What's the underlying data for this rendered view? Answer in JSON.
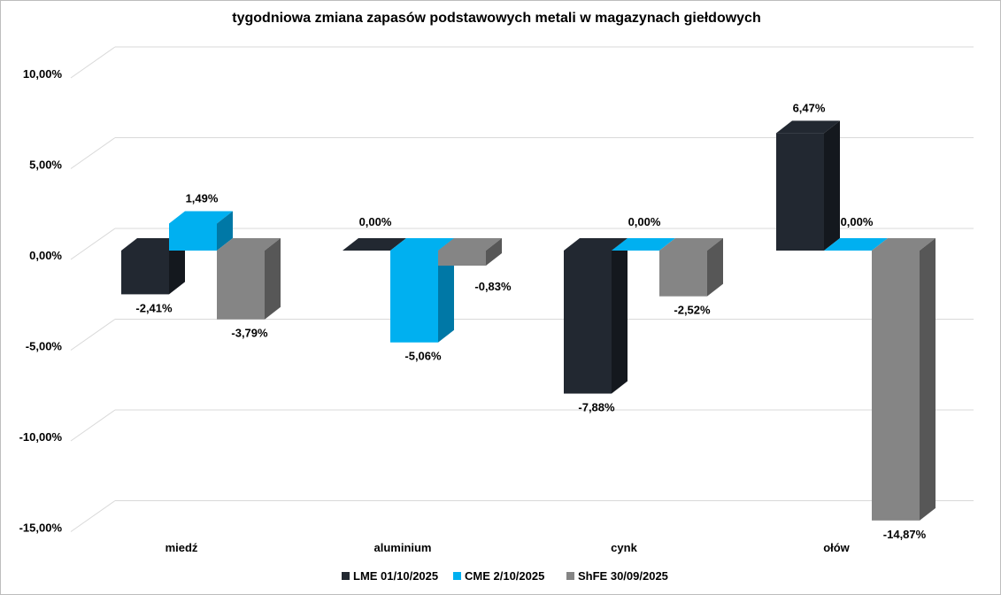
{
  "chart_data": {
    "type": "bar",
    "title": "tygodniowa zmiana zapasów podstawowych metali w magazynach giełdowych",
    "categories": [
      "miedź",
      "aluminium",
      "cynk",
      "ołów"
    ],
    "series": [
      {
        "name": "LME 01/10/2025",
        "color": "#222831",
        "side": "#14181e",
        "values": [
          -2.41,
          0.0,
          -7.88,
          6.47
        ],
        "labels": [
          "-2,41%",
          "0,00%",
          "-7,88%",
          "6,47%"
        ]
      },
      {
        "name": "CME 2/10/2025",
        "color": "#00b0f0",
        "side": "#0078a6",
        "values": [
          1.49,
          -5.06,
          0.0,
          0.0
        ],
        "labels": [
          "1,49%",
          "-5,06%",
          "0,00%",
          "0,00%"
        ]
      },
      {
        "name": "ShFE 30/09/2025",
        "color": "#858585",
        "side": "#575757",
        "values": [
          -3.79,
          -0.83,
          -2.52,
          -14.87
        ],
        "labels": [
          "-3,79%",
          "-0,83%",
          "-2,52%",
          "-14,87%"
        ]
      }
    ],
    "yticks": [
      10,
      5,
      0,
      -5,
      -10,
      -15
    ],
    "ytick_labels": [
      "10,00%",
      "5,00%",
      "0,00%",
      "-5,00%",
      "-10,00%",
      "-15,00%"
    ],
    "ylim": [
      -15,
      10
    ],
    "grid": true,
    "legend": "bottom"
  }
}
